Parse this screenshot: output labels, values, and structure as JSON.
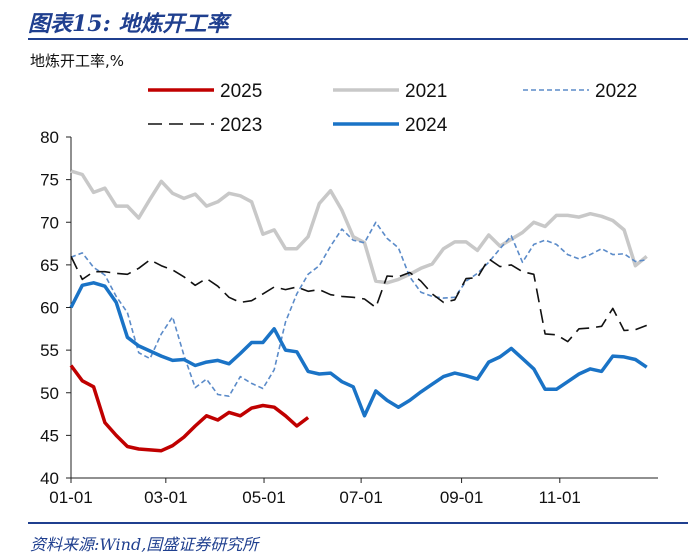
{
  "figure": {
    "title": "图表15:  地炼开工率",
    "source": "资料来源:Wind,国盛证券研究所"
  },
  "chart_data": {
    "type": "line",
    "ylabel": "地炼开工率,%",
    "xlabel": "",
    "ylim": [
      40,
      80
    ],
    "yticks": [
      40,
      45,
      50,
      55,
      60,
      65,
      70,
      75,
      80
    ],
    "xlim": [
      0,
      52
    ],
    "xticks": [
      {
        "label": "01-01",
        "x": 0
      },
      {
        "label": "03-01",
        "x": 8.4
      },
      {
        "label": "05-01",
        "x": 17.1
      },
      {
        "label": "07-01",
        "x": 25.7
      },
      {
        "label": "09-01",
        "x": 34.6
      },
      {
        "label": "11-01",
        "x": 43.3
      }
    ],
    "grid": false,
    "legend_position": "top",
    "series": [
      {
        "name": "2025",
        "color": "#c00000",
        "dash": "solid",
        "width": 3.5,
        "values": [
          53.2,
          51.4,
          50.7,
          46.5,
          45.0,
          43.7,
          43.4,
          43.3,
          43.2,
          43.8,
          44.8,
          46.1,
          47.3,
          46.8,
          47.7,
          47.3,
          48.2,
          48.5,
          48.3,
          47.3,
          46.1,
          47.1
        ]
      },
      {
        "name": "2021",
        "color": "#c8c8c8",
        "dash": "solid",
        "width": 3.5,
        "values": [
          76.0,
          75.6,
          73.5,
          74.0,
          71.9,
          71.9,
          70.5,
          72.7,
          74.8,
          73.4,
          72.8,
          73.3,
          71.9,
          72.4,
          73.4,
          73.1,
          72.4,
          68.6,
          69.1,
          66.9,
          66.9,
          68.3,
          72.2,
          73.7,
          71.4,
          68.3,
          67.6,
          63.1,
          62.9,
          63.3,
          63.9,
          64.6,
          65.1,
          66.9,
          67.7,
          67.7,
          66.7,
          68.5,
          67.2,
          68.0,
          68.8,
          70.0,
          69.5,
          70.8,
          70.8,
          70.6,
          71.0,
          70.7,
          70.2,
          69.1,
          64.9,
          66.0
        ]
      },
      {
        "name": "2022",
        "color": "#5b8bc9",
        "dash": "dashed",
        "width": 1.6,
        "values": [
          65.9,
          66.4,
          64.7,
          63.8,
          61.3,
          59.4,
          54.7,
          54.0,
          56.9,
          58.9,
          54.4,
          50.6,
          51.6,
          49.8,
          49.6,
          51.9,
          51.1,
          50.5,
          52.7,
          58.3,
          61.6,
          63.9,
          64.9,
          67.2,
          69.2,
          67.9,
          67.6,
          70.0,
          68.1,
          67.0,
          63.6,
          61.8,
          61.3,
          61.1,
          61.2,
          63.1,
          64.0,
          65.3,
          66.9,
          68.4,
          65.3,
          67.4,
          67.9,
          67.4,
          66.2,
          65.7,
          66.2,
          66.9,
          66.2,
          66.3,
          65.4,
          65.6
        ]
      },
      {
        "name": "2023",
        "color": "#111111",
        "dash": "longdash",
        "width": 1.6,
        "values": [
          66.0,
          63.3,
          64.2,
          64.2,
          64.0,
          63.9,
          64.6,
          65.6,
          64.9,
          64.4,
          63.6,
          62.6,
          63.4,
          62.5,
          61.2,
          60.6,
          60.8,
          61.6,
          62.4,
          62.1,
          62.4,
          61.9,
          62.1,
          61.5,
          61.3,
          61.2,
          61.0,
          60.0,
          63.7,
          63.6,
          64.1,
          63.1,
          61.6,
          60.6,
          60.9,
          63.4,
          63.5,
          65.7,
          64.8,
          65.0,
          64.2,
          63.9,
          56.9,
          56.8,
          56.0,
          57.5,
          57.6,
          57.8,
          59.9,
          57.3,
          57.4,
          57.9
        ]
      },
      {
        "name": "2024",
        "color": "#1a73c6",
        "dash": "solid",
        "width": 3.5,
        "values": [
          60.0,
          62.6,
          62.9,
          62.5,
          60.6,
          56.5,
          55.5,
          54.9,
          54.3,
          53.8,
          53.9,
          53.2,
          53.6,
          53.8,
          53.4,
          54.6,
          55.9,
          55.9,
          57.5,
          55.0,
          54.8,
          52.5,
          52.2,
          52.3,
          51.3,
          50.7,
          47.3,
          50.2,
          49.1,
          48.3,
          49.1,
          50.1,
          51.0,
          51.9,
          52.3,
          52.0,
          51.6,
          53.6,
          54.2,
          55.2,
          54.0,
          52.8,
          50.4,
          50.4,
          51.3,
          52.2,
          52.8,
          52.5,
          54.3,
          54.2,
          53.9,
          53.0
        ]
      }
    ]
  }
}
